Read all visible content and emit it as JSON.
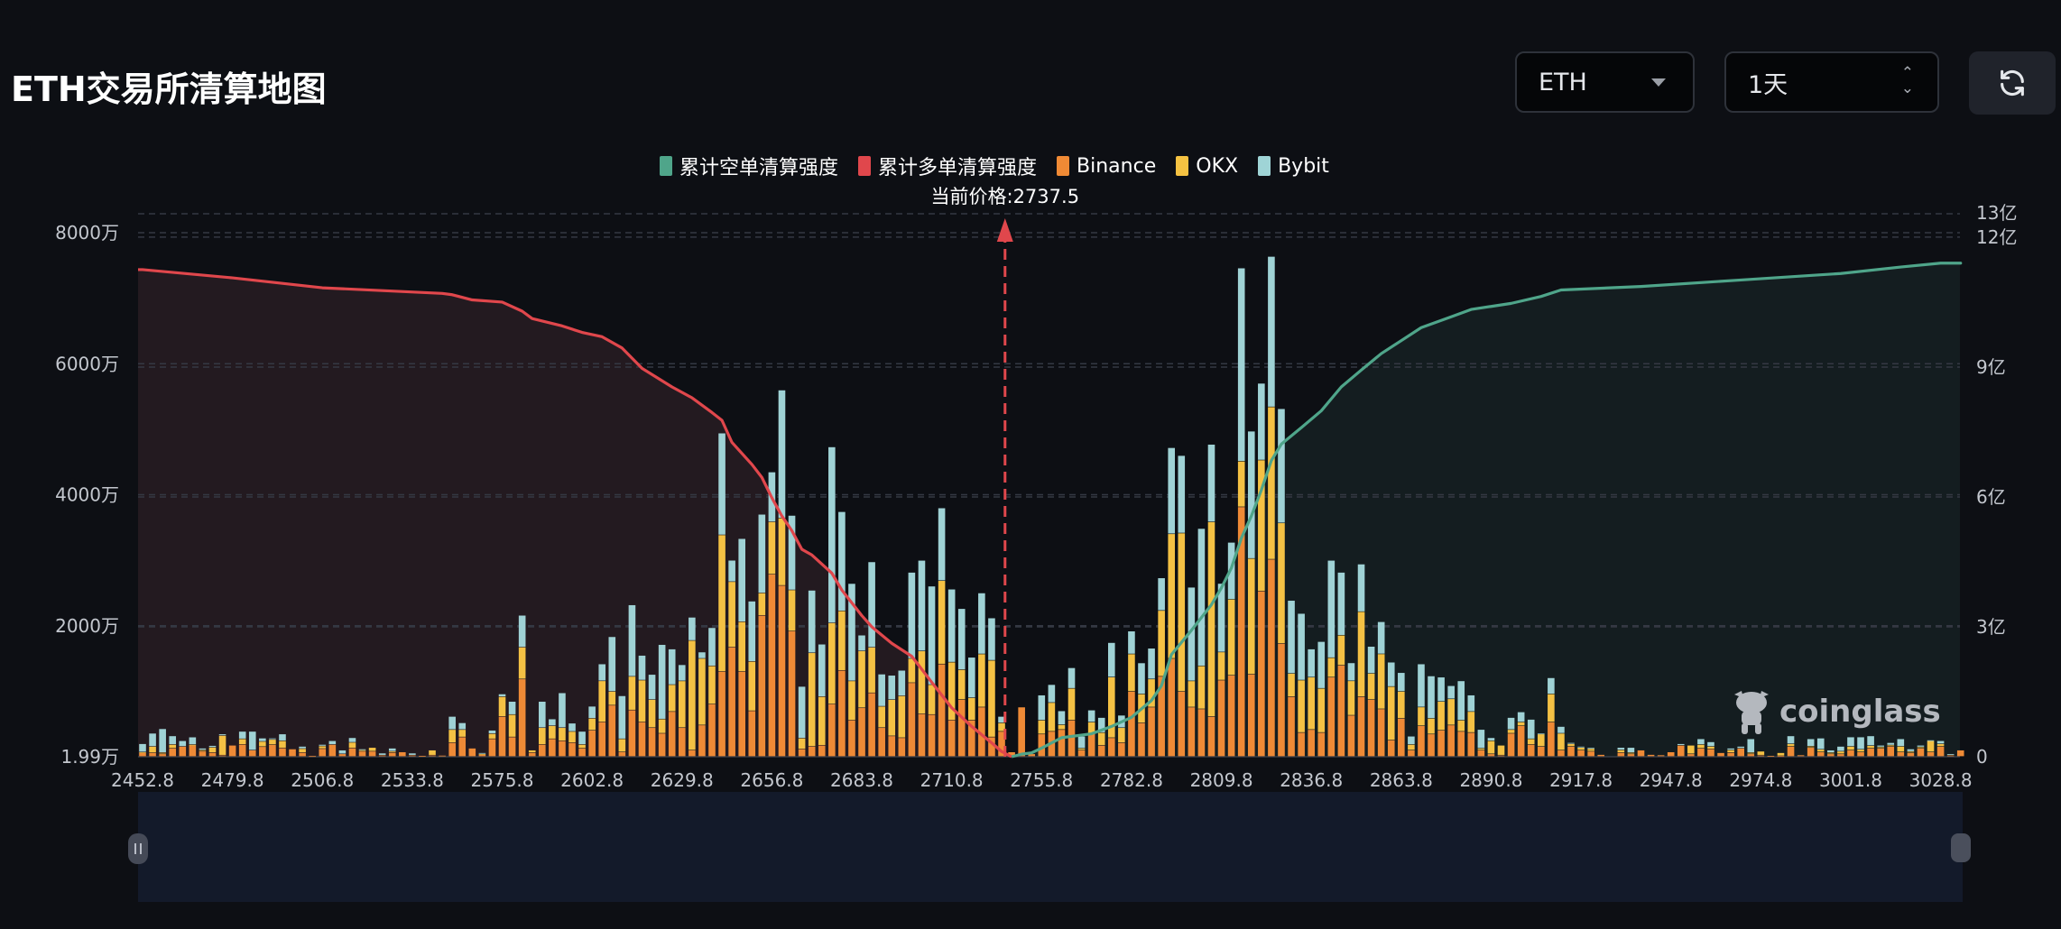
{
  "header": {
    "title": "ETH交易所清算地图",
    "symbol_select": {
      "value": "ETH",
      "icon": "caret-down-icon"
    },
    "range_select": {
      "value": "1天",
      "icon": "up-down-chevron-icon"
    },
    "refresh_button": {
      "icon": "refresh-icon"
    }
  },
  "legend": [
    {
      "label": "累计空单清算强度",
      "color": "#4fa58a"
    },
    {
      "label": "累计多单清算强度",
      "color": "#e0474c"
    },
    {
      "label": "Binance",
      "color": "#f08a35"
    },
    {
      "label": "OKX",
      "color": "#f5c242"
    },
    {
      "label": "Bybit",
      "color": "#9fd4d6"
    }
  ],
  "current_price": {
    "label": "当前价格:2737.5",
    "value": 2737.5,
    "color": "#e0474c"
  },
  "watermark": "coinglass",
  "chart_data": {
    "type": "bar",
    "stacked": true,
    "title": "",
    "x_tick_labels": [
      "2452.8",
      "2479.8",
      "2506.8",
      "2533.8",
      "2575.8",
      "2602.8",
      "2629.8",
      "2656.8",
      "2683.8",
      "2710.8",
      "2755.8",
      "2782.8",
      "2809.8",
      "2836.8",
      "2863.8",
      "2890.8",
      "2917.8",
      "2947.8",
      "2974.8",
      "3001.8",
      "3028.8"
    ],
    "x_tick_every": 9,
    "left_axis": {
      "unit": "万",
      "ticks": [
        2000,
        4000,
        6000,
        8000
      ],
      "tick_labels": [
        "2000万",
        "4000万",
        "6000万",
        "8000万"
      ],
      "min_label": "1.99万",
      "range": [
        0,
        8290
      ]
    },
    "right_axis": {
      "unit": "亿",
      "ticks": [
        0,
        3,
        6,
        9,
        12
      ],
      "tick_labels": [
        "0",
        "3亿",
        "6亿",
        "9亿",
        "12亿"
      ],
      "max_label": "13亿",
      "range": [
        0,
        12.54
      ]
    },
    "grid": true,
    "legend_position": "top-center",
    "series": [
      {
        "name": "Binance",
        "axis": "left",
        "color": "#ee8a36",
        "values": [
          57,
          57,
          40,
          126,
          154,
          171,
          80,
          60,
          20,
          171,
          183,
          97,
          150,
          180,
          130,
          114,
          60,
          10,
          120,
          183,
          40,
          130,
          80,
          80,
          20,
          60,
          69,
          20,
          11,
          20,
          17,
          211,
          297,
          126,
          30,
          269,
          611,
          297,
          1183,
          60,
          183,
          269,
          240,
          211,
          126,
          400,
          526,
          783,
          69,
          709,
          526,
          440,
          354,
          686,
          440,
          97,
          480,
          800,
          1297,
          1669,
          1297,
          697,
          2154,
          2783,
          2611,
          1914,
          114,
          154,
          171,
          800,
          1314,
          554,
          743,
          971,
          440,
          314,
          286,
          1126,
          651,
          640,
          1411,
          554,
          869,
          554,
          754,
          297,
          383,
          69,
          754,
          40,
          343,
          383,
          411,
          554,
          97,
          354,
          171,
          286,
          211,
          994,
          514,
          754,
          1223,
          1497,
          994,
          754,
          726,
          611,
          1166,
          1240,
          3811,
          1257,
          2526,
          3011,
          1726,
          914,
          366,
          411,
          366,
          1211,
          1394,
          629,
          914,
          869,
          726,
          251,
          583,
          97,
          469,
          343,
          400,
          480,
          383,
          366,
          97,
          40,
          20,
          354,
          469,
          183,
          154,
          526,
          97,
          154,
          97,
          80,
          29,
          0,
          60,
          40,
          97,
          29,
          23,
          69,
          171,
          40,
          126,
          114,
          57,
          60,
          126,
          40,
          20,
          11,
          10,
          154,
          23,
          137,
          69,
          40,
          40,
          97,
          69,
          126,
          126,
          154,
          69,
          57,
          126,
          69,
          154,
          20,
          97
        ]
      },
      {
        "name": "OKX",
        "axis": "left",
        "color": "#f4c144",
        "values": [
          11,
          97,
          20,
          57,
          0,
          11,
          20,
          80,
          300,
          0,
          86,
          0,
          80,
          80,
          110,
          0,
          60,
          0,
          40,
          0,
          0,
          86,
          20,
          57,
          0,
          20,
          0,
          0,
          0,
          77,
          0,
          200,
          114,
          0,
          10,
          80,
          303,
          343,
          486,
          37,
          257,
          200,
          200,
          171,
          57,
          183,
          629,
          211,
          200,
          514,
          640,
          429,
          217,
          411,
          714,
          1674,
          1017,
          583,
          2086,
          1000,
          760,
          754,
          343,
          800,
          1029,
          629,
          166,
          1429,
          743,
          1240,
          909,
          600,
          869,
          697,
          326,
          554,
          640,
          371,
          960,
          457,
          1274,
          886,
          457,
          343,
          811,
          1171,
          131,
          0,
          0,
          0,
          211,
          440,
          74,
          486,
          29,
          171,
          194,
          926,
          229,
          571,
          440,
          429,
          1006,
          1903,
          2417,
          400,
          657,
          2971,
          429,
          1160,
          697,
          1766,
          2000,
          2326,
          1840,
          354,
          800,
          800,
          674,
          297,
          457,
          526,
          1297,
          400,
          840,
          817,
          411,
          86,
          286,
          240,
          440,
          400,
          171,
          320,
          29,
          200,
          151,
          57,
          57,
          86,
          189,
          429,
          257,
          40,
          40,
          40,
          0,
          0,
          40,
          20,
          0,
          0,
          0,
          0,
          0,
          131,
          57,
          40,
          0,
          40,
          0,
          20,
          60,
          0,
          47,
          40,
          0,
          20,
          40,
          20,
          40,
          57,
          40,
          40,
          20,
          20,
          86,
          20,
          20,
          171,
          40,
          0,
          0
        ]
      },
      {
        "name": "Bybit",
        "axis": "left",
        "color": "#9fd2d5",
        "values": [
          126,
          200,
          363,
          131,
          86,
          114,
          26,
          26,
          23,
          0,
          114,
          286,
          50,
          20,
          103,
          0,
          34,
          0,
          23,
          57,
          57,
          70,
          14,
          0,
          31,
          46,
          0,
          31,
          0,
          0,
          0,
          200,
          103,
          0,
          17,
          51,
          40,
          200,
          486,
          0,
          400,
          103,
          531,
          126,
          200,
          183,
          257,
          834,
          657,
          1091,
          377,
          383,
          1137,
          543,
          246,
          354,
          97,
          583,
          1554,
          326,
          1269,
          920,
          1200,
          760,
          1954,
          1137,
          789,
          954,
          800,
          2686,
          1514,
          1486,
          240,
          1303,
          491,
          371,
          389,
          1314,
          1383,
          1503,
          1109,
          1114,
          931,
          617,
          931,
          646,
          97,
          0,
          0,
          0,
          383,
          274,
          211,
          314,
          183,
          183,
          229,
          526,
          189,
          349,
          474,
          469,
          497,
          1314,
          1183,
          1429,
          2097,
          1183,
          1046,
          869,
          2949,
          1943,
          1171,
          2297,
          1743,
          1114,
          1017,
          429,
          714,
          1486,
          960,
          274,
          726,
          411,
          491,
          371,
          286,
          126,
          657,
          646,
          371,
          200,
          600,
          251,
          286,
          46,
          0,
          183,
          154,
          297,
          11,
          246,
          103,
          17,
          17,
          17,
          0,
          0,
          37,
          77,
          0,
          0,
          0,
          0,
          23,
          0,
          86,
          69,
          0,
          26,
          28,
          209,
          0,
          0,
          0,
          120,
          0,
          112,
          171,
          37,
          74,
          143,
          188,
          148,
          25,
          37,
          114,
          37,
          25,
          11,
          46,
          20,
          0
        ]
      },
      {
        "name": "累计多单清算强度",
        "type": "area",
        "axis": "right",
        "color": "#e0474c",
        "fill": "#231a20",
        "points": [
          [
            0,
            11.25
          ],
          [
            9,
            11.06
          ],
          [
            18,
            10.83
          ],
          [
            30,
            10.7
          ],
          [
            31,
            10.67
          ],
          [
            33,
            10.55
          ],
          [
            36,
            10.5
          ],
          [
            38,
            10.29
          ],
          [
            39,
            10.12
          ],
          [
            42,
            9.95
          ],
          [
            44,
            9.8
          ],
          [
            46,
            9.7
          ],
          [
            48,
            9.44
          ],
          [
            50,
            8.97
          ],
          [
            53,
            8.54
          ],
          [
            55,
            8.29
          ],
          [
            57,
            7.95
          ],
          [
            58,
            7.77
          ],
          [
            59,
            7.26
          ],
          [
            61,
            6.75
          ],
          [
            62,
            6.45
          ],
          [
            63,
            5.98
          ],
          [
            64,
            5.56
          ],
          [
            65,
            5.22
          ],
          [
            66,
            4.79
          ],
          [
            67,
            4.66
          ],
          [
            69,
            4.24
          ],
          [
            70,
            3.85
          ],
          [
            72,
            3.26
          ],
          [
            73,
            3.0
          ],
          [
            75,
            2.62
          ],
          [
            77,
            2.32
          ],
          [
            79,
            1.72
          ],
          [
            81,
            1.13
          ],
          [
            83,
            0.7
          ],
          [
            85,
            0.32
          ],
          [
            86,
            0.12
          ],
          [
            87,
            0
          ]
        ]
      },
      {
        "name": "累计空单清算强度",
        "type": "area",
        "axis": "right",
        "color": "#4fa58a",
        "fill": "#141d20",
        "points": [
          [
            87,
            0
          ],
          [
            88,
            0.06
          ],
          [
            89,
            0.09
          ],
          [
            90,
            0.2
          ],
          [
            92,
            0.44
          ],
          [
            95,
            0.53
          ],
          [
            97,
            0.7
          ],
          [
            99,
            0.91
          ],
          [
            101,
            1.3
          ],
          [
            102,
            1.64
          ],
          [
            103,
            2.36
          ],
          [
            105,
            2.92
          ],
          [
            107,
            3.51
          ],
          [
            108,
            3.9
          ],
          [
            109,
            4.36
          ],
          [
            110,
            5.05
          ],
          [
            111,
            5.56
          ],
          [
            112,
            6.16
          ],
          [
            113,
            6.84
          ],
          [
            114,
            7.22
          ],
          [
            116,
            7.6
          ],
          [
            118,
            7.99
          ],
          [
            120,
            8.54
          ],
          [
            122,
            8.93
          ],
          [
            124,
            9.31
          ],
          [
            126,
            9.61
          ],
          [
            128,
            9.91
          ],
          [
            131,
            10.16
          ],
          [
            133,
            10.33
          ],
          [
            135,
            10.4
          ],
          [
            137,
            10.47
          ],
          [
            140,
            10.63
          ],
          [
            142,
            10.78
          ],
          [
            150,
            10.86
          ],
          [
            160,
            11.01
          ],
          [
            170,
            11.16
          ],
          [
            176,
            11.31
          ],
          [
            180,
            11.4
          ],
          [
            182,
            11.4
          ]
        ]
      }
    ]
  }
}
